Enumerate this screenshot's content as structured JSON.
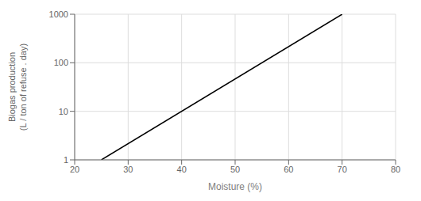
{
  "chart_data": {
    "type": "line",
    "x": [
      25,
      70
    ],
    "values": [
      1,
      1000
    ],
    "color": "#000000",
    "xlabel": "Moisture (%)",
    "ylabel": "Biogas production\n(L / ton of refuse . day)",
    "xlim": [
      20,
      80
    ],
    "ylim": [
      1,
      1000
    ],
    "xticks": [
      20,
      30,
      40,
      50,
      60,
      70,
      80
    ],
    "yticks": [
      1,
      10,
      100,
      1000
    ],
    "log": "y",
    "grid": true
  }
}
